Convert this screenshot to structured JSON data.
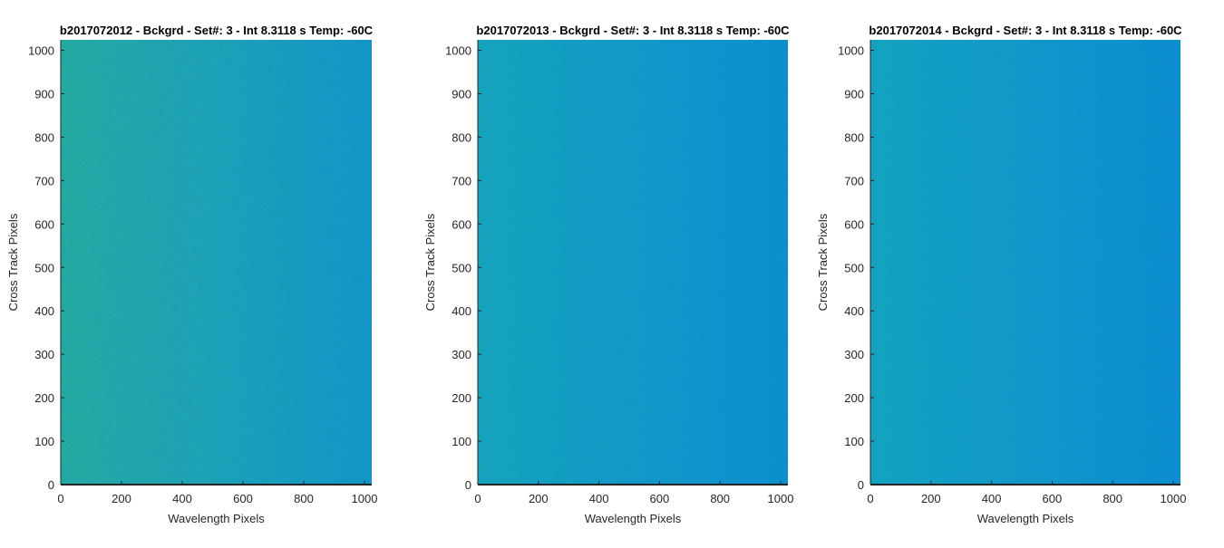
{
  "chart_data": [
    {
      "type": "heatmap",
      "title": "b2017072012 - Bckgrd - Set#: 3 - Int 8.3118 s Temp: -60C",
      "xlabel": "Wavelength Pixels",
      "ylabel": "Cross Track Pixels",
      "xlim": [
        0,
        1024
      ],
      "ylim": [
        0,
        1024
      ],
      "xticks": [
        0,
        200,
        400,
        600,
        800,
        1000
      ],
      "yticks": [
        0,
        100,
        200,
        300,
        400,
        500,
        600,
        700,
        800,
        900,
        1000
      ],
      "colors": {
        "left": "#22a9a4",
        "mid": "#1a9fbd",
        "right": "#1295c9",
        "grain": "#38b493"
      },
      "noise_level": 0.45
    },
    {
      "type": "heatmap",
      "title": "b2017072013 - Bckgrd - Set#: 3 - Int 8.3118 s Temp: -60C",
      "xlabel": "Wavelength Pixels",
      "ylabel": "Cross Track Pixels",
      "xlim": [
        0,
        1024
      ],
      "ylim": [
        0,
        1024
      ],
      "xticks": [
        0,
        200,
        400,
        600,
        800,
        1000
      ],
      "yticks": [
        0,
        100,
        200,
        300,
        400,
        500,
        600,
        700,
        800,
        900,
        1000
      ],
      "colors": {
        "left": "#14a4bf",
        "mid": "#1297cb",
        "right": "#0d8fd0",
        "grain": "#26ad9f"
      },
      "noise_level": 0.25
    },
    {
      "type": "heatmap",
      "title": "b2017072014 - Bckgrd - Set#: 3 - Int 8.3118 s Temp: -60C",
      "xlabel": "Wavelength Pixels",
      "ylabel": "Cross Track Pixels",
      "xlim": [
        0,
        1024
      ],
      "ylim": [
        0,
        1024
      ],
      "xticks": [
        0,
        200,
        400,
        600,
        800,
        1000
      ],
      "yticks": [
        0,
        100,
        200,
        300,
        400,
        500,
        600,
        700,
        800,
        900,
        1000
      ],
      "colors": {
        "left": "#13a3c2",
        "mid": "#1196cc",
        "right": "#0c8ed1",
        "grain": "#22aaa6"
      },
      "noise_level": 0.22
    }
  ]
}
